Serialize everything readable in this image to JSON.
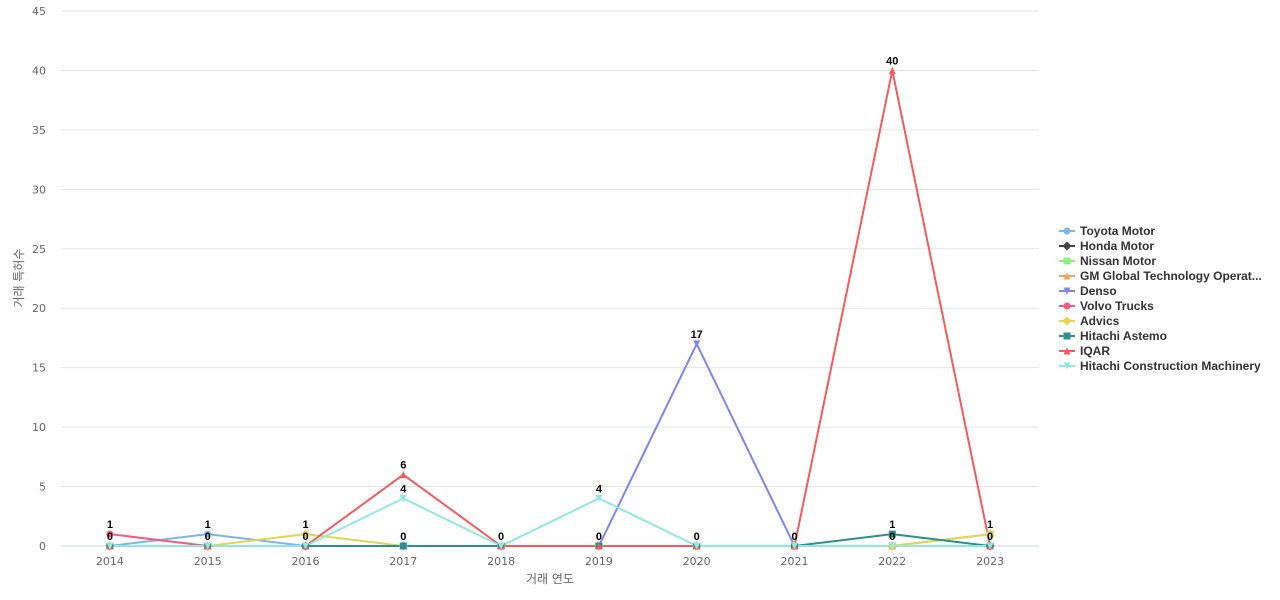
{
  "chart_data": {
    "type": "line",
    "title": "",
    "xlabel": "거래 연도",
    "ylabel": "거래 특허수",
    "x": [
      "2014",
      "2015",
      "2016",
      "2017",
      "2018",
      "2019",
      "2020",
      "2021",
      "2022",
      "2023"
    ],
    "ylim": [
      0,
      45
    ],
    "yticks": [
      0,
      5,
      10,
      15,
      20,
      25,
      30,
      35,
      40,
      45
    ],
    "grid": true,
    "legend_position": "right",
    "series": [
      {
        "name": "Toyota Motor",
        "color": "#7cb5ec",
        "marker": "circle",
        "values": [
          0,
          1,
          0,
          0,
          0,
          0,
          0,
          0,
          0,
          0
        ]
      },
      {
        "name": "Honda Motor",
        "color": "#434348",
        "marker": "diamond",
        "values": [
          0,
          0,
          0,
          0,
          0,
          0,
          0,
          0,
          0,
          0
        ]
      },
      {
        "name": "Nissan Motor",
        "color": "#90ed7d",
        "marker": "square",
        "values": [
          0,
          0,
          0,
          0,
          0,
          0,
          0,
          0,
          0,
          1
        ]
      },
      {
        "name": "GM Global Technology Operat...",
        "color": "#f7a35c",
        "marker": "triangle",
        "values": [
          0,
          0,
          0,
          0,
          0,
          0,
          0,
          0,
          0,
          0
        ]
      },
      {
        "name": "Denso",
        "color": "#8085e9",
        "marker": "triangle-down",
        "values": [
          0,
          0,
          0,
          0,
          0,
          0,
          17,
          0,
          0,
          0
        ]
      },
      {
        "name": "Volvo Trucks",
        "color": "#f15c80",
        "marker": "circle",
        "values": [
          1,
          0,
          0,
          0,
          0,
          0,
          0,
          0,
          0,
          0
        ]
      },
      {
        "name": "Advics",
        "color": "#e4d354",
        "marker": "diamond",
        "values": [
          0,
          0,
          1,
          0,
          0,
          0,
          0,
          0,
          0,
          1
        ]
      },
      {
        "name": "Hitachi Astemo",
        "color": "#2b908f",
        "marker": "square",
        "values": [
          0,
          0,
          0,
          0,
          0,
          0,
          0,
          0,
          1,
          0
        ]
      },
      {
        "name": "IQAR",
        "color": "#f45b5b",
        "marker": "triangle",
        "values": [
          0,
          0,
          0,
          6,
          0,
          0,
          0,
          0,
          40,
          0
        ]
      },
      {
        "name": "Hitachi Construction Machinery",
        "color": "#91e8e1",
        "marker": "triangle-down",
        "values": [
          0,
          0,
          0,
          4,
          0,
          4,
          0,
          0,
          0,
          0
        ]
      }
    ],
    "data_labels": [
      {
        "x": "2014",
        "values": [
          "1",
          "0"
        ]
      },
      {
        "x": "2015",
        "values": [
          "1",
          "0"
        ]
      },
      {
        "x": "2016",
        "values": [
          "1",
          "0"
        ]
      },
      {
        "x": "2017",
        "values": [
          "6",
          "4",
          "0"
        ]
      },
      {
        "x": "2018",
        "values": [
          "0"
        ]
      },
      {
        "x": "2019",
        "values": [
          "4",
          "0"
        ]
      },
      {
        "x": "2020",
        "values": [
          "17",
          "0"
        ]
      },
      {
        "x": "2021",
        "values": [
          "0"
        ]
      },
      {
        "x": "2022",
        "values": [
          "40",
          "1",
          "0"
        ]
      },
      {
        "x": "2023",
        "values": [
          "1",
          "0"
        ]
      }
    ]
  }
}
